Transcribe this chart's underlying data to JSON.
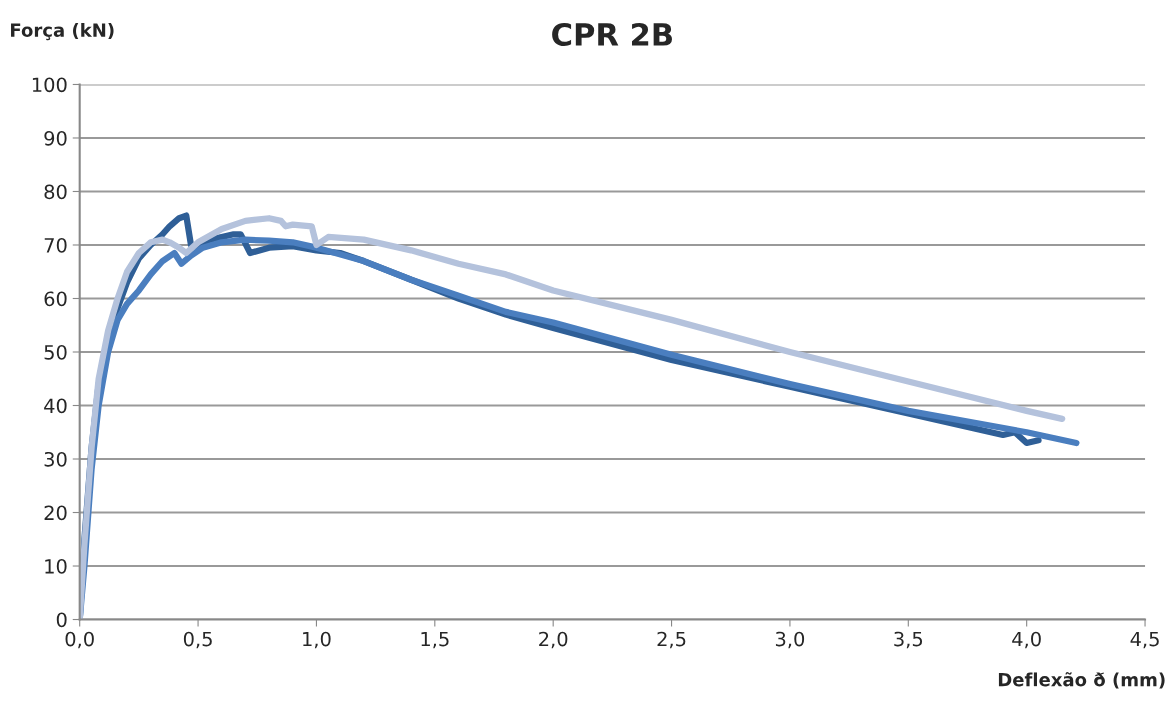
{
  "chart_data": {
    "type": "line",
    "title": "CPR 2B",
    "xlabel": "Deflexão ð (mm)",
    "ylabel": "Força (kN)",
    "xlim": [
      0,
      4.5
    ],
    "ylim": [
      0,
      100
    ],
    "xticks": [
      {
        "value": 0,
        "label": "0,0"
      },
      {
        "value": 0.5,
        "label": "0,5"
      },
      {
        "value": 1,
        "label": "1,0"
      },
      {
        "value": 1.5,
        "label": "1,5"
      },
      {
        "value": 2,
        "label": "2,0"
      },
      {
        "value": 2.5,
        "label": "2,5"
      },
      {
        "value": 3,
        "label": "3,0"
      },
      {
        "value": 3.5,
        "label": "3,5"
      },
      {
        "value": 4,
        "label": "4,0"
      },
      {
        "value": 4.5,
        "label": "4,5"
      }
    ],
    "yticks": [
      0,
      10,
      20,
      30,
      40,
      50,
      60,
      70,
      80,
      90,
      100
    ],
    "grid": "y",
    "marker": "none",
    "line_style": "solid",
    "series": [
      {
        "color": "#2f5f97",
        "x": [
          0,
          0.02,
          0.05,
          0.08,
          0.12,
          0.15,
          0.2,
          0.25,
          0.3,
          0.35,
          0.38,
          0.42,
          0.45,
          0.47,
          0.5,
          0.55,
          0.6,
          0.65,
          0.68,
          0.72,
          0.8,
          0.9,
          1.0,
          1.1,
          1.2,
          1.4,
          1.6,
          1.8,
          2.0,
          2.5,
          3.0,
          3.2,
          3.5,
          3.9,
          3.95,
          4.0,
          4.05
        ],
        "values": [
          0,
          15,
          32,
          44,
          52,
          57,
          63,
          67.5,
          70,
          72,
          73.5,
          75,
          75.5,
          70,
          69.5,
          71,
          71.5,
          72,
          72,
          68.5,
          69.5,
          69.8,
          69,
          68.5,
          67,
          63.5,
          60,
          57,
          54.5,
          48.5,
          43.5,
          41.5,
          38.5,
          34.5,
          35,
          33,
          33.5
        ]
      },
      {
        "color": "#4a7ebf",
        "x": [
          0,
          0.02,
          0.05,
          0.08,
          0.12,
          0.16,
          0.2,
          0.25,
          0.3,
          0.35,
          0.4,
          0.43,
          0.47,
          0.52,
          0.6,
          0.7,
          0.8,
          0.9,
          1.0,
          1.2,
          1.4,
          1.6,
          1.8,
          2.0,
          2.5,
          3.0,
          3.5,
          4.0,
          4.21
        ],
        "values": [
          0,
          10,
          28,
          40,
          50,
          56,
          59,
          61.5,
          64.5,
          67,
          68.5,
          66.5,
          68,
          69.5,
          70.5,
          71,
          70.8,
          70.5,
          69.5,
          67,
          63.5,
          60.5,
          57.5,
          55.5,
          49.5,
          44,
          39,
          35,
          33
        ]
      },
      {
        "color": "#b4c2dc",
        "x": [
          0,
          0.02,
          0.05,
          0.08,
          0.12,
          0.16,
          0.2,
          0.25,
          0.3,
          0.35,
          0.38,
          0.42,
          0.45,
          0.5,
          0.6,
          0.7,
          0.8,
          0.85,
          0.87,
          0.9,
          0.98,
          1.0,
          1.05,
          1.2,
          1.4,
          1.6,
          1.8,
          2.0,
          2.5,
          3.0,
          3.5,
          4.0,
          4.15
        ],
        "values": [
          0,
          14,
          32,
          45,
          54,
          60,
          65,
          68.5,
          70.5,
          71,
          70.5,
          69.5,
          68.5,
          70.5,
          73,
          74.5,
          75,
          74.5,
          73.5,
          73.8,
          73.5,
          70,
          71.5,
          71,
          69,
          66.5,
          64.5,
          61.5,
          56,
          50,
          44.5,
          39,
          37.5
        ]
      }
    ]
  }
}
